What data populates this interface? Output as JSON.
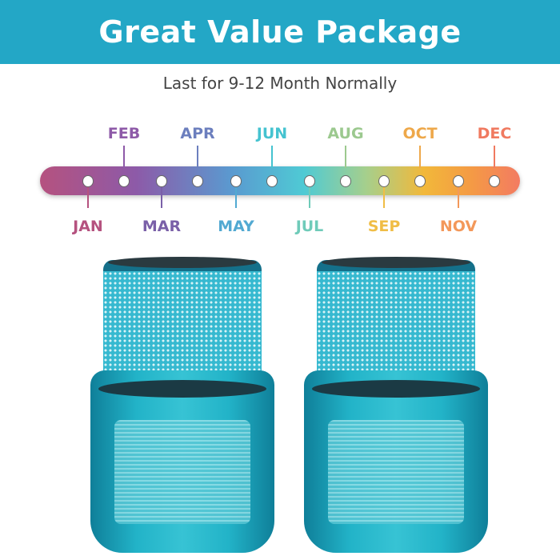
{
  "header": {
    "title": "Great Value Package"
  },
  "subtitle": "Last for 9-12 Month Normally",
  "timeline": {
    "months": [
      {
        "label": "JAN",
        "pos": "bottom",
        "color": "#b5527f"
      },
      {
        "label": "FEB",
        "pos": "top",
        "color": "#8e5aa8"
      },
      {
        "label": "MAR",
        "pos": "bottom",
        "color": "#7a60a8"
      },
      {
        "label": "APR",
        "pos": "top",
        "color": "#6c7fbe"
      },
      {
        "label": "MAY",
        "pos": "bottom",
        "color": "#52a9d2"
      },
      {
        "label": "JUN",
        "pos": "top",
        "color": "#45c3d0"
      },
      {
        "label": "JUL",
        "pos": "bottom",
        "color": "#6fcbb9"
      },
      {
        "label": "AUG",
        "pos": "top",
        "color": "#9cc98f"
      },
      {
        "label": "SEP",
        "pos": "bottom",
        "color": "#f0bd46"
      },
      {
        "label": "OCT",
        "pos": "top",
        "color": "#eea84a"
      },
      {
        "label": "NOV",
        "pos": "bottom",
        "color": "#f3985a"
      },
      {
        "label": "DEC",
        "pos": "top",
        "color": "#f07a60"
      }
    ]
  },
  "colors": {
    "banner": "#23a7c6"
  }
}
